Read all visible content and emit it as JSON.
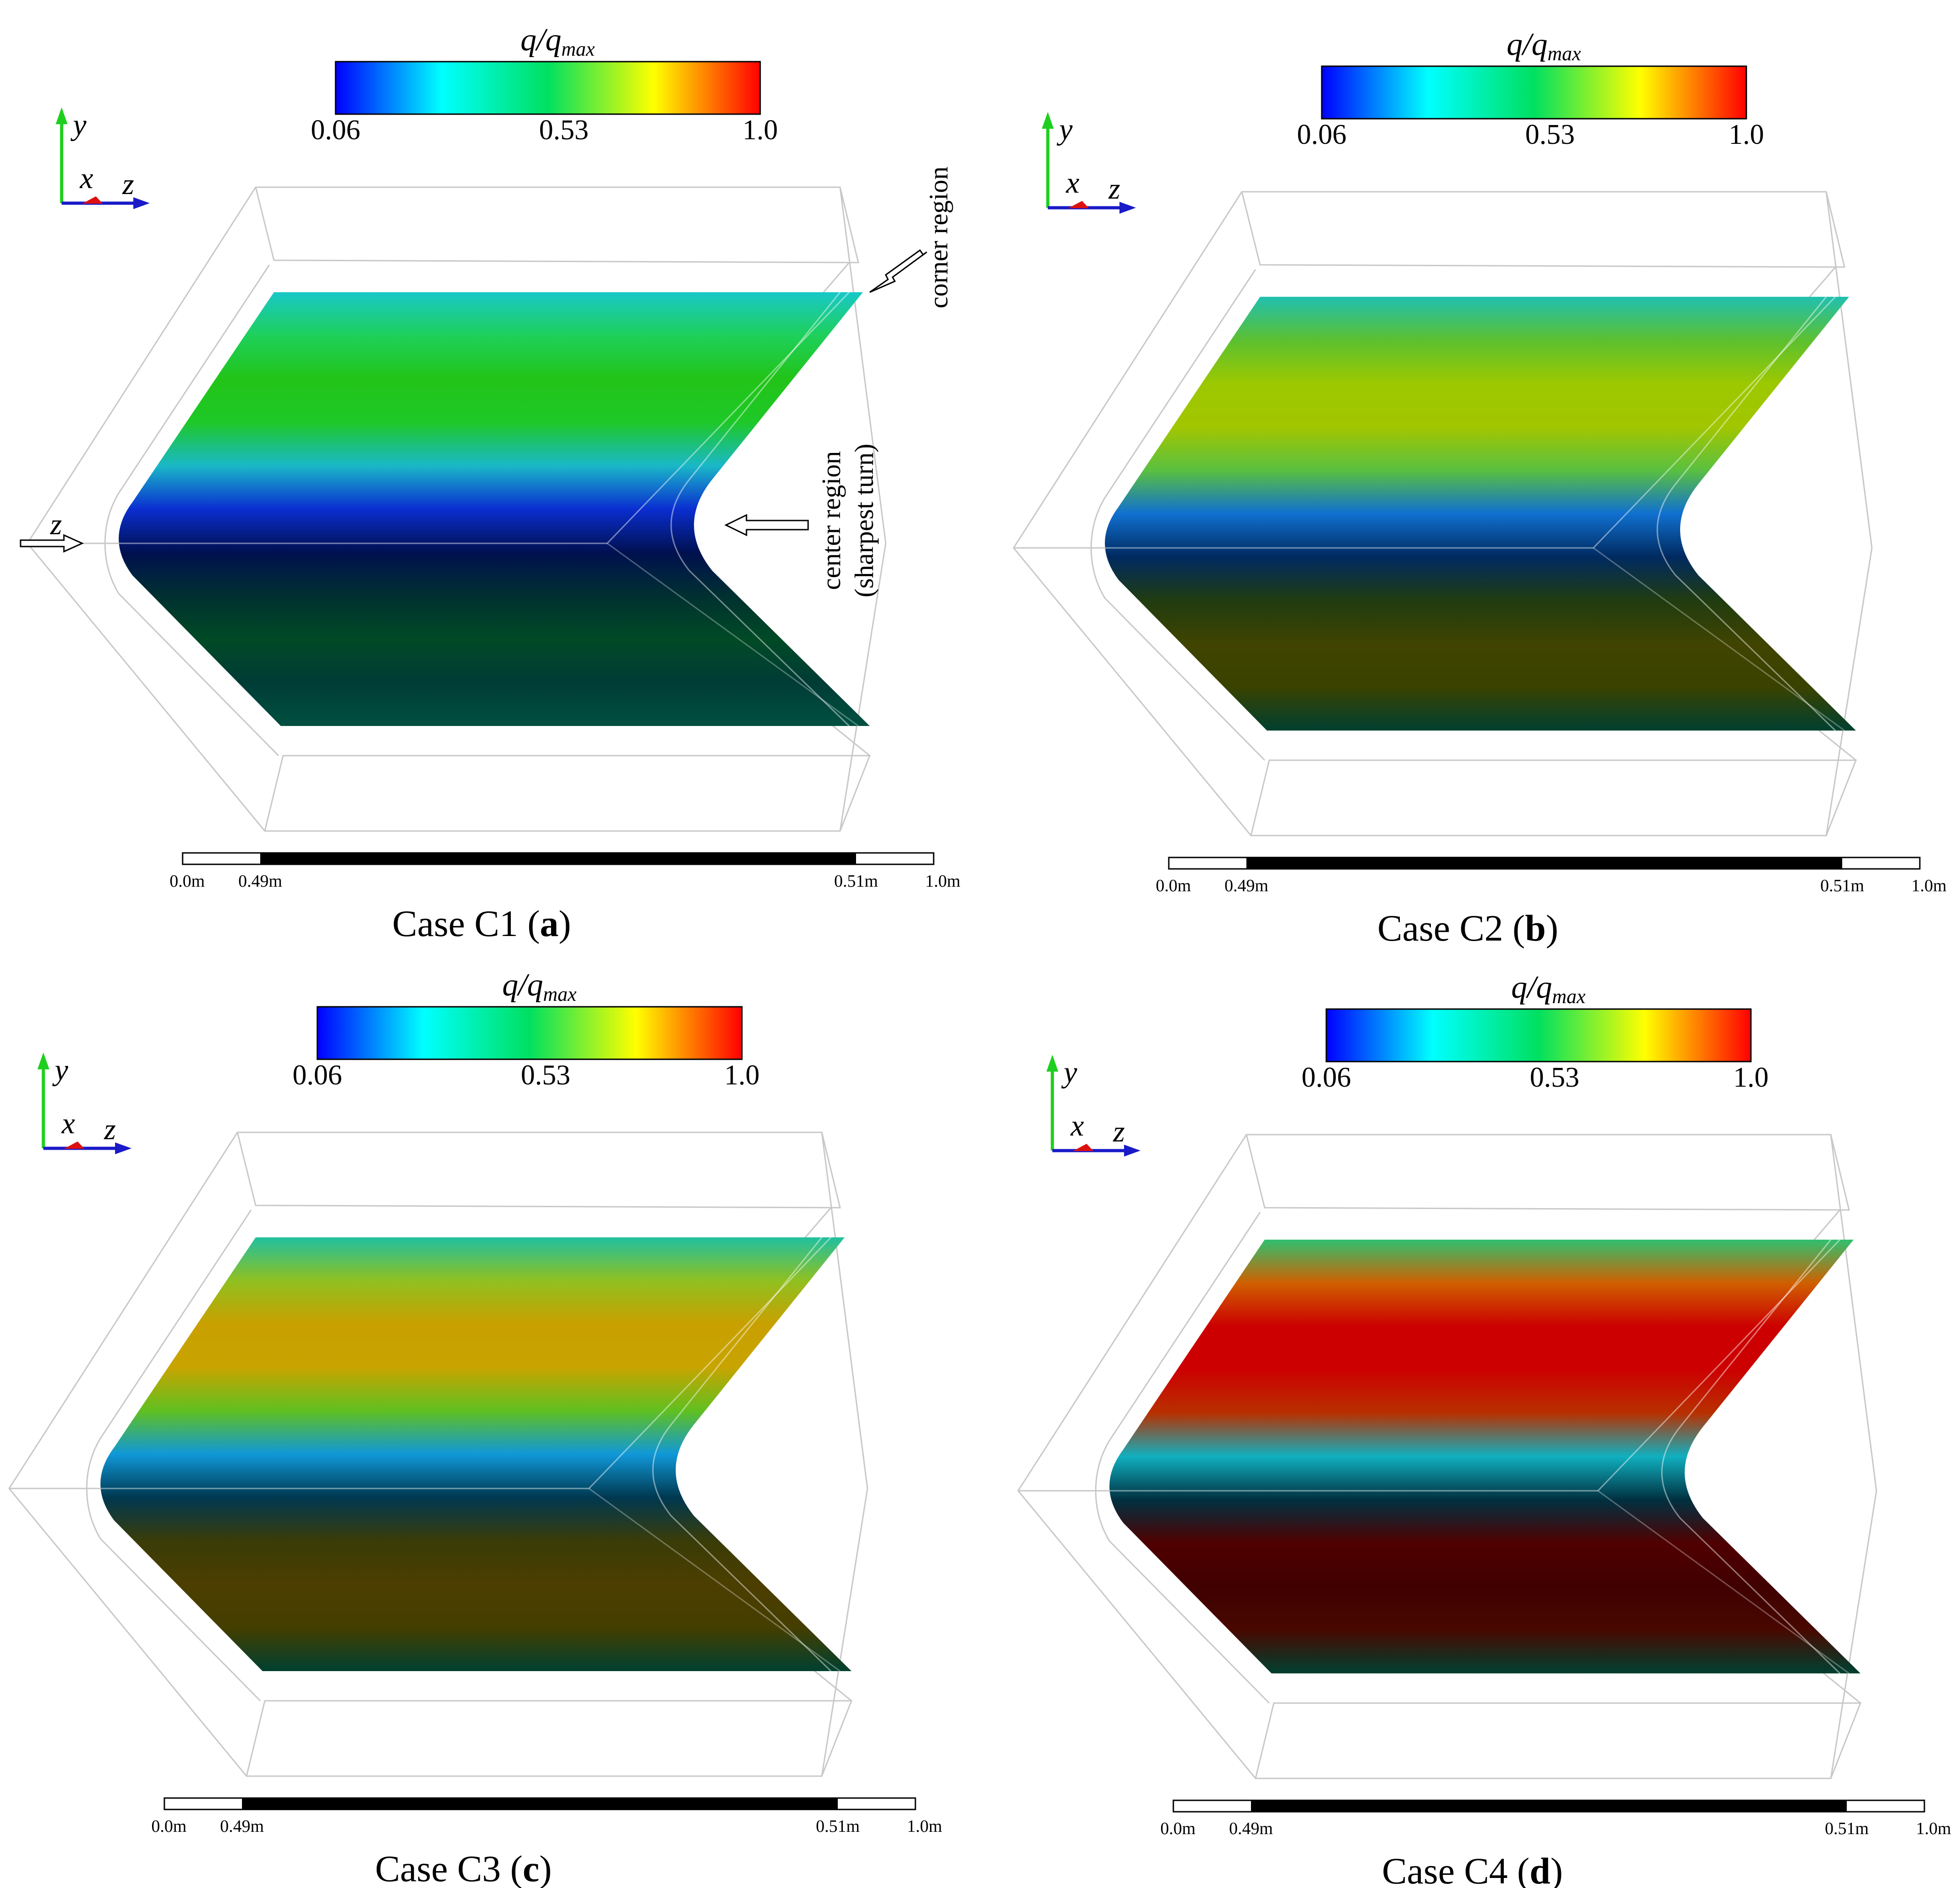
{
  "colorbar": {
    "label_main": "q/q",
    "label_sub": "max",
    "ticks": [
      "0.06",
      "0.53",
      "1.0"
    ],
    "stops": [
      "#0000ff",
      "#00ffff",
      "#00e060",
      "#ffff00",
      "#ff0000"
    ]
  },
  "axes": {
    "y": "y",
    "x": "x",
    "z": "z",
    "y_color": "#1fcf1f",
    "z_color": "#1a1ac8",
    "x_color": "#dd1010"
  },
  "scalebar": {
    "labels": [
      "0.0m",
      "0.49m",
      "0.51m",
      "1.0m"
    ]
  },
  "annotations": {
    "corner": "corner region",
    "center_line1": "center region",
    "center_line2": "(sharpest turn)",
    "z_inlet": "z"
  },
  "panels": [
    {
      "id": "a",
      "title": "Case C1 (",
      "letter": "a",
      "close": ")",
      "bands": [
        "#18c8c8",
        "#1ed05a",
        "#22c418",
        "#1ec828",
        "#1ab8c8",
        "#0a2ed0",
        "#001050",
        "#003030",
        "#004a26",
        "#003c36",
        "#005040"
      ]
    },
    {
      "id": "b",
      "title": "Case C2 (",
      "letter": "b",
      "close": ")",
      "bands": [
        "#20c0b0",
        "#5cc030",
        "#9cc800",
        "#a2c600",
        "#5ac040",
        "#1070d0",
        "#002a60",
        "#203c10",
        "#404400",
        "#3a4200",
        "#004030"
      ]
    },
    {
      "id": "c",
      "title": "Case C3 (",
      "letter": "c",
      "close": ")",
      "bands": [
        "#20c0a0",
        "#90c020",
        "#c8a000",
        "#c8a400",
        "#60c020",
        "#1098d8",
        "#003850",
        "#3a3c08",
        "#4c3e00",
        "#443e00",
        "#004030"
      ]
    },
    {
      "id": "d",
      "title": "Case C4 (",
      "letter": "d",
      "close": ")",
      "bands": [
        "#30c070",
        "#d06000",
        "#cc0000",
        "#cc0000",
        "#b83000",
        "#10b0c0",
        "#003040",
        "#500000",
        "#400000",
        "#480800",
        "#004030"
      ]
    }
  ]
}
